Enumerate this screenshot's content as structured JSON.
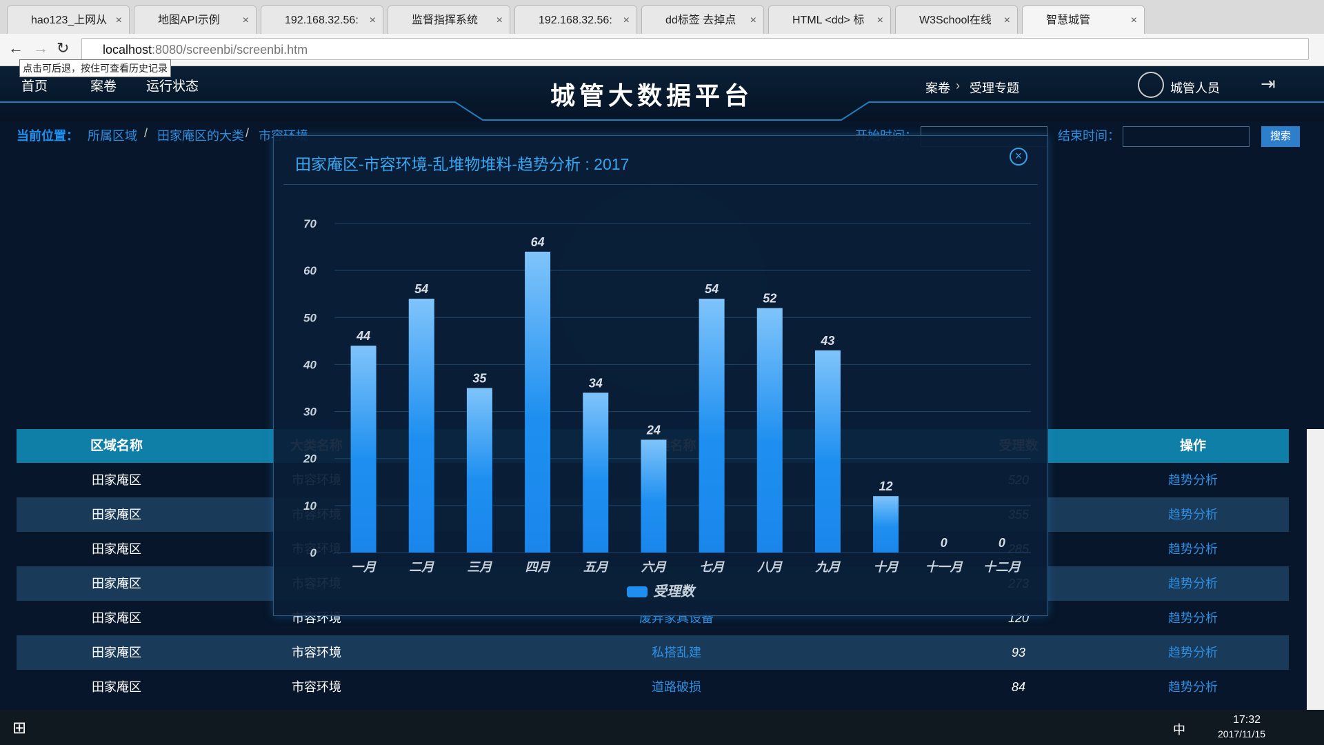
{
  "browser": {
    "tabs": [
      "hao123_上网从",
      "地图API示例",
      "192.168.32.56:",
      "监督指挥系统",
      "192.168.32.56:",
      "dd标签 去掉点",
      "HTML <dd> 标",
      "W3School在线",
      "智慧城管"
    ],
    "url_host": "localhost",
    "url_rest": ":8080/screenbi/screenbi.htm",
    "tooltip": "点击可后退，按住可查看历史记录"
  },
  "header": {
    "nav": [
      "首页",
      "案卷",
      "运行状态"
    ],
    "title": "城管大数据平台",
    "crumb": [
      "案卷",
      "受理专题"
    ],
    "user": "城管人员"
  },
  "breadcrumb": {
    "label": "当前位置：",
    "items": [
      "所属区域",
      "田家庵区的大类",
      "市容环境"
    ],
    "start": "开始时间：",
    "end": "结束时间：",
    "search": "搜索"
  },
  "table": {
    "columns": [
      "区域名称",
      "大类名称",
      "类名称",
      "受理数",
      "操作"
    ],
    "rows": [
      [
        "田家庵区",
        "市容环境",
        null,
        "520",
        "趋势分析"
      ],
      [
        "田家庵区",
        "市容环境",
        null,
        "355",
        "趋势分析"
      ],
      [
        "田家庵区",
        "市容环境",
        null,
        "285",
        "趋势分析"
      ],
      [
        "田家庵区",
        "市容环境",
        null,
        "273",
        "趋势分析"
      ],
      [
        "田家庵区",
        "市容环境",
        "废弃家具设备",
        "120",
        "趋势分析"
      ],
      [
        "田家庵区",
        "市容环境",
        "私搭乱建",
        "93",
        "趋势分析"
      ],
      [
        "田家庵区",
        "市容环境",
        "道路破损",
        "84",
        "趋势分析"
      ]
    ]
  },
  "chart_data": {
    "type": "bar",
    "title": "田家庵区-市容环境-乱堆物堆料-趋势分析 : 2017",
    "categories": [
      "一月",
      "二月",
      "三月",
      "四月",
      "五月",
      "六月",
      "七月",
      "八月",
      "九月",
      "十月",
      "十一月",
      "十二月"
    ],
    "series": [
      {
        "name": "受理数",
        "color": "#1e8ff0",
        "values": [
          44,
          54,
          35,
          64,
          34,
          24,
          54,
          52,
          43,
          12,
          0,
          0
        ]
      }
    ],
    "ylim": [
      0,
      70
    ],
    "yticks": [
      0,
      10,
      20,
      30,
      40,
      50,
      60,
      70
    ],
    "grid": true
  },
  "taskbar": {
    "ime": "中",
    "time": "17:32",
    "date": "2017/11/15"
  }
}
